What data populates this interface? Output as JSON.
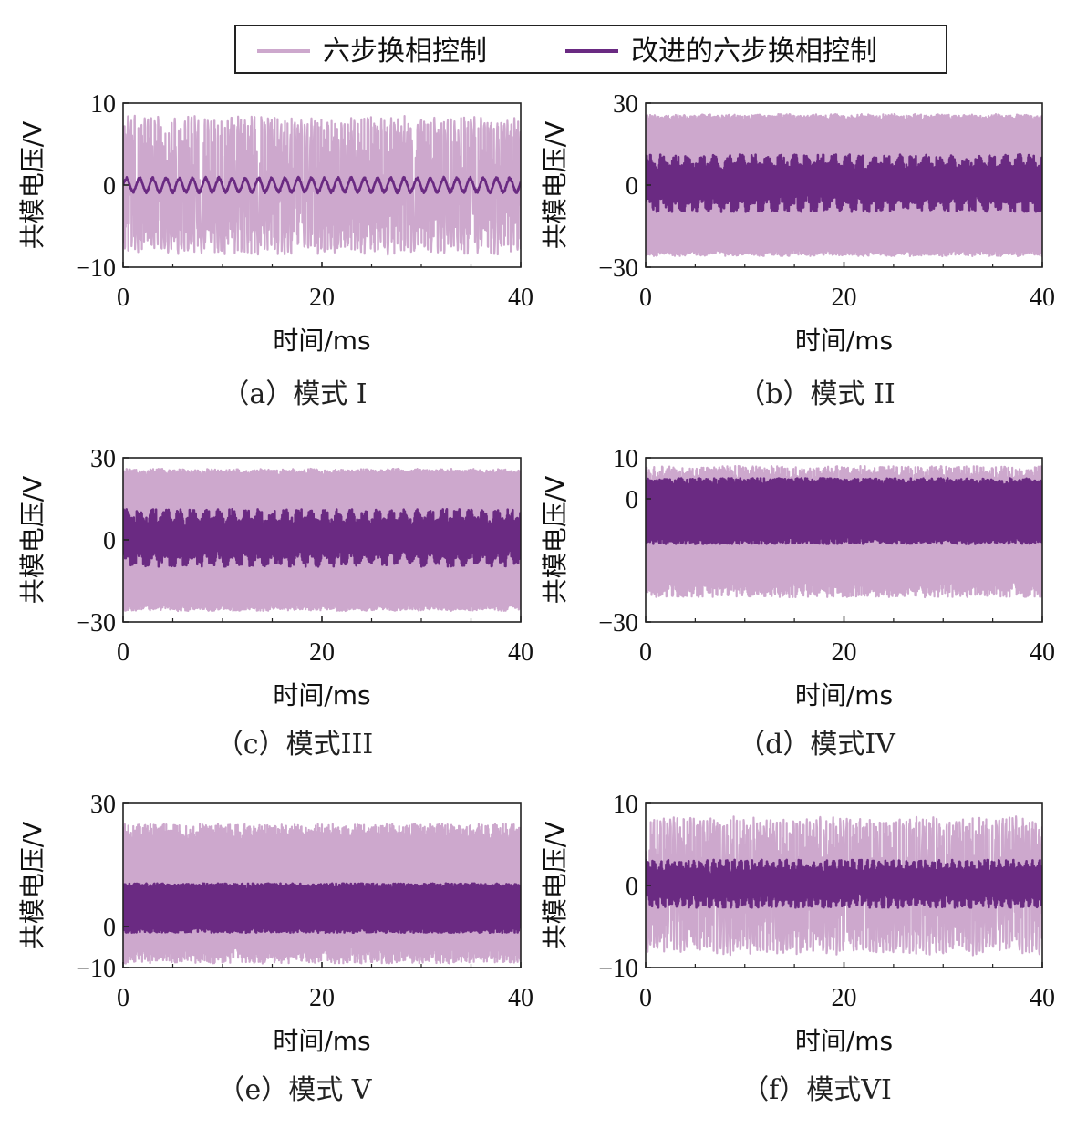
{
  "legend": {
    "items": [
      {
        "label": "六步换相控制",
        "color": "#cda8cd"
      },
      {
        "label": "改进的六步换相控制",
        "color": "#6a2a82"
      }
    ]
  },
  "chart_data": [
    {
      "id": "a",
      "type": "line",
      "caption": "（a）模式 I",
      "xlabel": "时间/ms",
      "ylabel": "共模电压/V",
      "xlim": [
        0,
        40
      ],
      "ylim": [
        -10,
        10
      ],
      "xticks": [
        "0",
        "20",
        "40"
      ],
      "yticks": [
        "10",
        "0",
        "−10"
      ],
      "ytick_values": [
        10,
        0,
        -10
      ],
      "series": [
        {
          "name": "六步换相控制",
          "color": "#cda8cd",
          "center": 0,
          "amplitude": 8.5,
          "shape": "spike",
          "period_ms": 0.67
        },
        {
          "name": "改进的六步换相控制",
          "color": "#6a2a82",
          "center": 0,
          "amplitude": 1.0,
          "shape": "ripple",
          "period_ms": 1.33
        }
      ]
    },
    {
      "id": "b",
      "type": "line",
      "caption": "（b）模式 II",
      "xlabel": "时间/ms",
      "ylabel": "共模电压/V",
      "xlim": [
        0,
        40
      ],
      "ylim": [
        -30,
        30
      ],
      "xticks": [
        "0",
        "20",
        "40"
      ],
      "yticks": [
        "30",
        "0",
        "−30"
      ],
      "ytick_values": [
        30,
        0,
        -30
      ],
      "series": [
        {
          "name": "六步换相控制",
          "color": "#cda8cd",
          "center": 0,
          "amplitude": 26,
          "shape": "square",
          "period_ms": 1.33
        },
        {
          "name": "改进的六步换相控制",
          "color": "#6a2a82",
          "center": 0,
          "amplitude": 9,
          "shape": "band",
          "period_ms": 1.33
        }
      ]
    },
    {
      "id": "c",
      "type": "line",
      "caption": "（c）模式III",
      "xlabel": "时间/ms",
      "ylabel": "共模电压/V",
      "xlim": [
        0,
        40
      ],
      "ylim": [
        -30,
        30
      ],
      "xticks": [
        "0",
        "20",
        "40"
      ],
      "yticks": [
        "30",
        "0",
        "−30"
      ],
      "ytick_values": [
        30,
        0,
        -30
      ],
      "series": [
        {
          "name": "六步换相控制",
          "color": "#cda8cd",
          "center": 0,
          "amplitude": 26,
          "shape": "square",
          "period_ms": 1.33
        },
        {
          "name": "改进的六步换相控制",
          "color": "#6a2a82",
          "center": 0,
          "amplitude": 9,
          "shape": "band",
          "period_ms": 1.33
        }
      ]
    },
    {
      "id": "d",
      "type": "line",
      "caption": "（d）模式IV",
      "xlabel": "时间/ms",
      "ylabel": "共模电压/V",
      "xlim": [
        0,
        40
      ],
      "ylim": [
        -30,
        10
      ],
      "xticks": [
        "0",
        "20",
        "40"
      ],
      "yticks": [
        "10",
        "0",
        "−30"
      ],
      "ytick_values": [
        10,
        0,
        -30
      ],
      "series": [
        {
          "name": "六步换相控制",
          "color": "#cda8cd",
          "center": -8,
          "amplitude": 16,
          "shape": "dense",
          "period_ms": 0.67
        },
        {
          "name": "改进的六步换相控制",
          "color": "#6a2a82",
          "center": -3,
          "amplitude": 8,
          "shape": "dense",
          "period_ms": 0.67
        }
      ]
    },
    {
      "id": "e",
      "type": "line",
      "caption": "（e）模式 V",
      "xlabel": "时间/ms",
      "ylabel": "共模电压/V",
      "xlim": [
        0,
        40
      ],
      "ylim": [
        -10,
        30
      ],
      "xticks": [
        "0",
        "20",
        "40"
      ],
      "yticks": [
        "30",
        "0",
        "−10"
      ],
      "ytick_values": [
        30,
        0,
        -10
      ],
      "series": [
        {
          "name": "六步换相控制",
          "color": "#cda8cd",
          "center": 8,
          "amplitude": 17,
          "shape": "dense",
          "period_ms": 0.67
        },
        {
          "name": "改进的六步换相控制",
          "color": "#6a2a82",
          "center": 4.5,
          "amplitude": 6,
          "shape": "dense",
          "period_ms": 0.67
        }
      ]
    },
    {
      "id": "f",
      "type": "line",
      "caption": "（f）模式VI",
      "xlabel": "时间/ms",
      "ylabel": "共模电压/V",
      "xlim": [
        0,
        40
      ],
      "ylim": [
        -10,
        10
      ],
      "xticks": [
        "0",
        "20",
        "40"
      ],
      "yticks": [
        "10",
        "0",
        "−10"
      ],
      "ytick_values": [
        10,
        0,
        -10
      ],
      "series": [
        {
          "name": "六步换相控制",
          "color": "#cda8cd",
          "center": 0,
          "amplitude": 8.5,
          "shape": "spike",
          "period_ms": 0.67
        },
        {
          "name": "改进的六步换相控制",
          "color": "#6a2a82",
          "center": 0,
          "amplitude": 2.5,
          "shape": "band",
          "period_ms": 0.67
        }
      ]
    }
  ]
}
